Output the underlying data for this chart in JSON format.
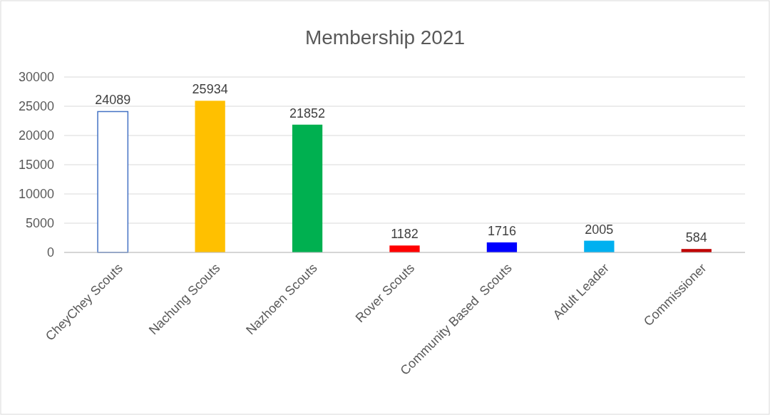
{
  "chart_data": {
    "type": "bar",
    "title": "Membership 2021",
    "categories": [
      "CheyChey Scouts",
      "Nachung Scouts",
      "Nazhoen Scouts",
      "Rover Scouts",
      "Community Based  Scouts",
      "Adult Leader",
      "Commissioner"
    ],
    "values": [
      24089,
      25934,
      21852,
      1182,
      1716,
      2005,
      584
    ],
    "colors": [
      "#ffffff",
      "#ffc000",
      "#00b050",
      "#ff0000",
      "#0000ff",
      "#00b0f0",
      "#c00000"
    ],
    "ylim": [
      0,
      30000
    ],
    "yticks": [
      0,
      5000,
      10000,
      15000,
      20000,
      25000,
      30000
    ],
    "grid": "y",
    "data_labels": true
  }
}
